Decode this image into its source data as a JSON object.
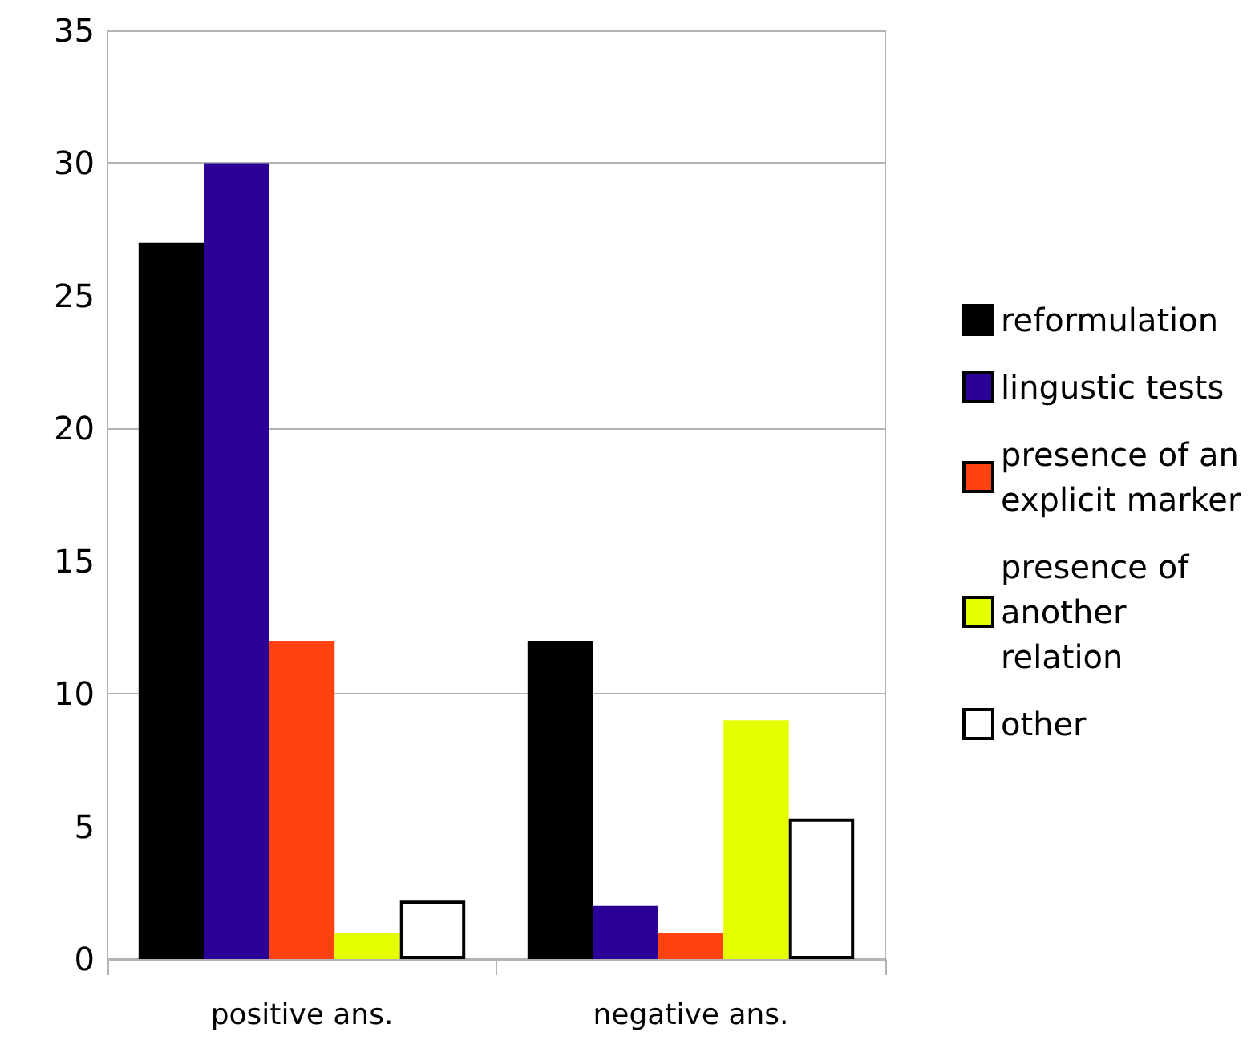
{
  "chart_data": {
    "type": "bar",
    "categories": [
      "positive ans.",
      "negative ans."
    ],
    "series": [
      {
        "name": "reformulation",
        "color": "#000000",
        "values": [
          27,
          12
        ]
      },
      {
        "name": "lingustic tests",
        "color": "#2a0096",
        "values": [
          30,
          2
        ]
      },
      {
        "name": "presence of an explicit marker",
        "color": "#ff420e",
        "values": [
          12,
          1
        ]
      },
      {
        "name": "presence of another relation",
        "color": "#e6ff00",
        "values": [
          1,
          9
        ]
      },
      {
        "name": "other",
        "color": "#ffffff",
        "values": [
          2.2,
          5.3
        ]
      }
    ],
    "ylim": [
      0,
      35
    ],
    "yticks": [
      0,
      5,
      10,
      15,
      20,
      25,
      30,
      35
    ],
    "grid": "y",
    "legend": "right"
  }
}
